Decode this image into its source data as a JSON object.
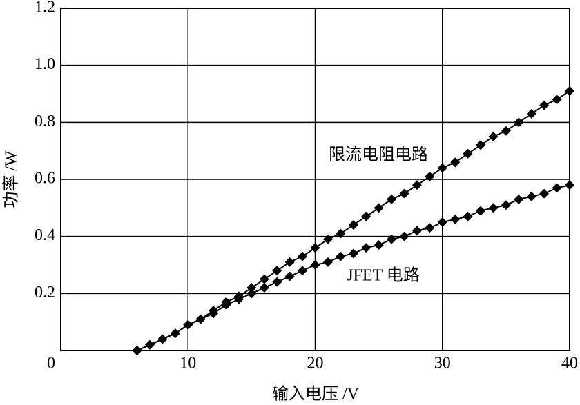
{
  "chart_data": {
    "type": "line",
    "x_label": "输入电压 /V",
    "y_label": "功率 /W",
    "annotations": [
      "限流电阻电路",
      "JFET 电路"
    ],
    "x": [
      6,
      7,
      8,
      9,
      10,
      11,
      12,
      13,
      14,
      15,
      16,
      17,
      18,
      19,
      20,
      21,
      22,
      23,
      24,
      25,
      26,
      27,
      28,
      29,
      30,
      31,
      32,
      33,
      34,
      35,
      36,
      37,
      38,
      39,
      40
    ],
    "series": [
      {
        "color": "#000000",
        "values": [
          0,
          0.02,
          0.04,
          0.06,
          0.09,
          0.11,
          0.14,
          0.17,
          0.19,
          0.22,
          0.25,
          0.28,
          0.31,
          0.33,
          0.36,
          0.39,
          0.41,
          0.44,
          0.47,
          0.5,
          0.53,
          0.55,
          0.58,
          0.61,
          0.64,
          0.66,
          0.69,
          0.72,
          0.75,
          0.77,
          0.8,
          0.83,
          0.86,
          0.88,
          0.91
        ]
      },
      {
        "color": "#000000",
        "values": [
          0,
          0.02,
          0.04,
          0.06,
          0.09,
          0.11,
          0.13,
          0.16,
          0.18,
          0.2,
          0.22,
          0.24,
          0.26,
          0.28,
          0.3,
          0.31,
          0.33,
          0.34,
          0.36,
          0.37,
          0.39,
          0.4,
          0.42,
          0.43,
          0.45,
          0.46,
          0.47,
          0.49,
          0.5,
          0.51,
          0.53,
          0.54,
          0.55,
          0.57,
          0.58
        ]
      }
    ],
    "xlim": [
      0,
      40
    ],
    "xticks": [
      0,
      10,
      20,
      30,
      40
    ],
    "ylim": [
      0,
      1.2
    ],
    "yticks": [
      0.2,
      0.4,
      0.6,
      0.8,
      {
        "value": 1,
        "label": "1.0"
      },
      1.2
    ],
    "grid": true
  }
}
